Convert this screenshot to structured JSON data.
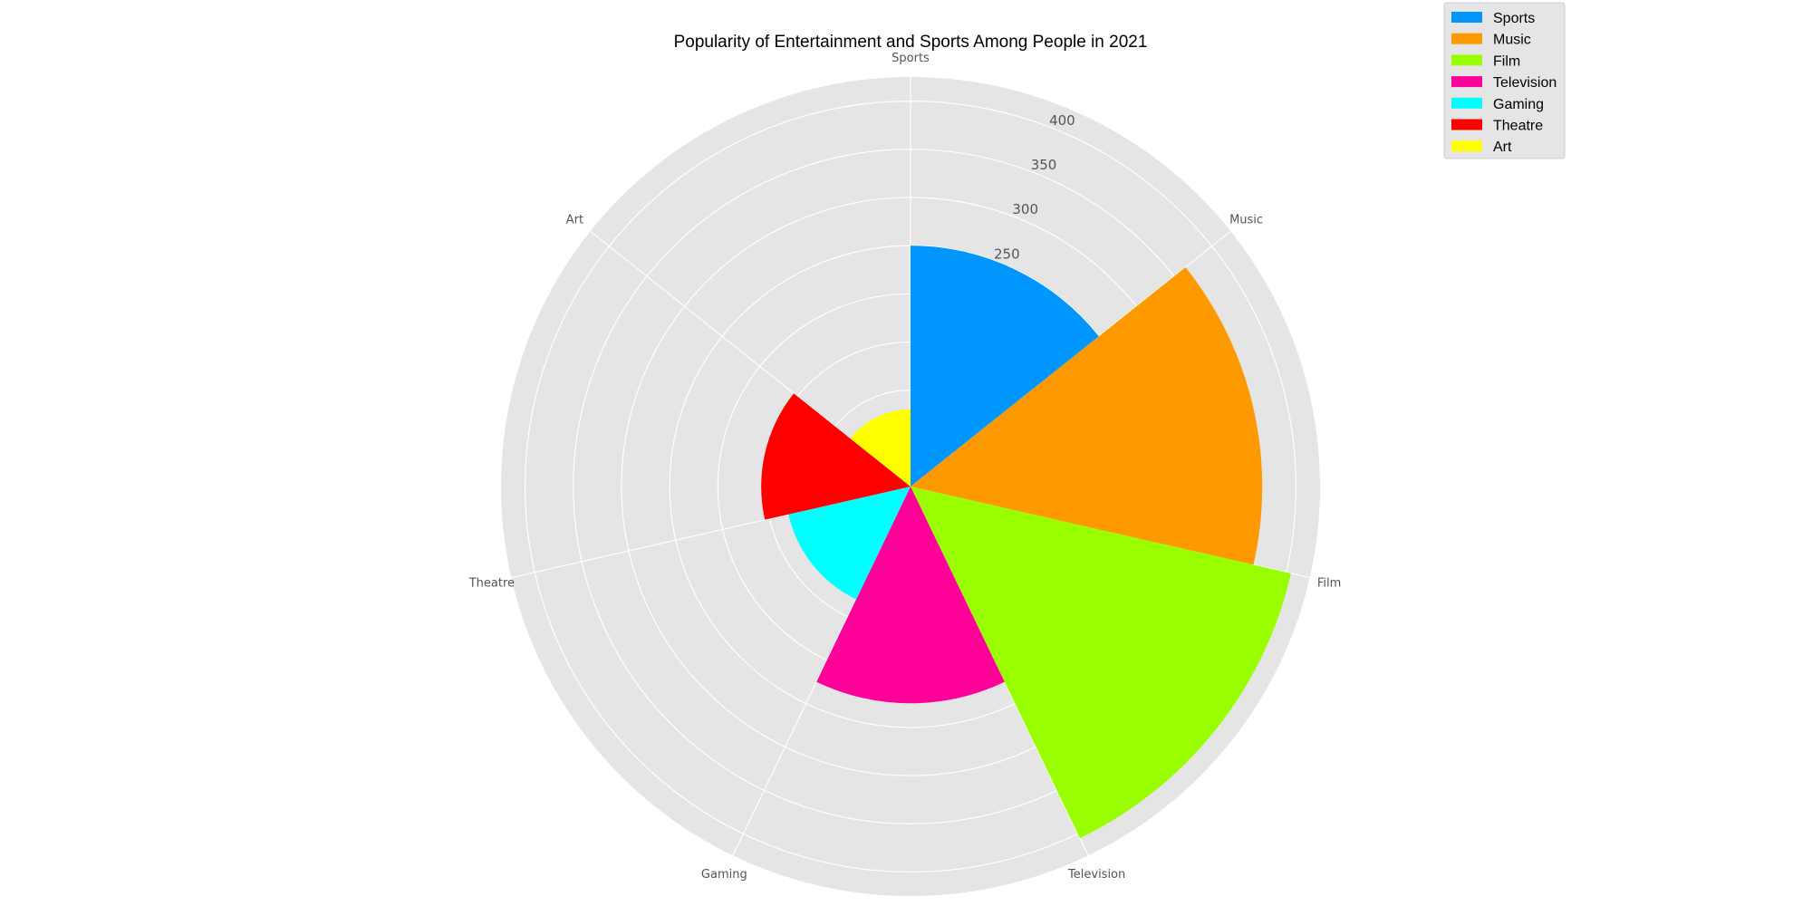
{
  "chart_data": {
    "type": "polar-bar",
    "title": "Popularity of Entertainment and Sports Among People in 2021",
    "categories": [
      "Sports",
      "Music",
      "Film",
      "Television",
      "Gaming",
      "Theatre",
      "Art"
    ],
    "values": [
      250,
      365,
      405,
      225,
      130,
      155,
      80
    ],
    "colors": [
      "#0096ff",
      "#ff9900",
      "#99ff00",
      "#ff0099",
      "#00ffff",
      "#ff0000",
      "#ffff00"
    ],
    "radial_ticks": [
      250,
      300,
      350,
      400
    ],
    "rmax": 425,
    "grid": true,
    "legend": {
      "position": "top-right",
      "entries": [
        "Sports",
        "Music",
        "Film",
        "Television",
        "Gaming",
        "Theatre",
        "Art"
      ]
    }
  }
}
